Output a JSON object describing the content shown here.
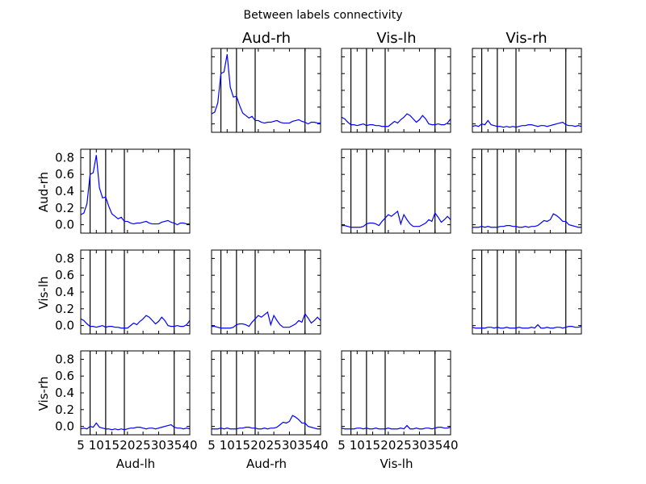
{
  "chart_data": {
    "type": "line",
    "title": "Between labels connectivity",
    "labels": [
      "Aud-lh",
      "Aud-rh",
      "Vis-lh",
      "Vis-rh"
    ],
    "x_range": [
      5,
      40
    ],
    "y_range": [
      -0.1,
      0.9
    ],
    "xticks": [
      5,
      10,
      15,
      20,
      25,
      30,
      35,
      40
    ],
    "yticks": [
      0.0,
      0.2,
      0.4,
      0.6,
      0.8
    ],
    "ytick_labels": [
      "0.0",
      "0.2",
      "0.4",
      "0.6",
      "0.8"
    ],
    "band_lines_hz": [
      8,
      13,
      19,
      35
    ],
    "line_color": "#0000ff",
    "x": [
      5,
      6,
      7,
      8,
      9,
      10,
      11,
      12,
      13,
      14,
      15,
      16,
      17,
      18,
      19,
      20,
      21,
      22,
      23,
      24,
      25,
      26,
      27,
      28,
      29,
      30,
      31,
      32,
      33,
      34,
      35,
      36,
      37,
      38,
      39,
      40
    ],
    "panels": [
      {
        "row": 0,
        "col": 1,
        "values": [
          0.12,
          0.14,
          0.25,
          0.6,
          0.62,
          0.83,
          0.44,
          0.32,
          0.33,
          0.22,
          0.13,
          0.1,
          0.07,
          0.09,
          0.04,
          0.04,
          0.02,
          0.01,
          0.02,
          0.02,
          0.03,
          0.04,
          0.02,
          0.01,
          0.01,
          0.01,
          0.03,
          0.04,
          0.05,
          0.03,
          0.02,
          0.0,
          0.02,
          0.02,
          0.01,
          0.01
        ]
      },
      {
        "row": 0,
        "col": 2,
        "values": [
          0.08,
          0.06,
          0.02,
          -0.01,
          -0.01,
          -0.02,
          -0.01,
          0.0,
          -0.02,
          -0.01,
          -0.01,
          -0.02,
          -0.02,
          -0.03,
          -0.03,
          -0.03,
          0.0,
          0.03,
          0.01,
          0.05,
          0.08,
          0.12,
          0.1,
          0.06,
          0.02,
          0.05,
          0.1,
          0.06,
          0.0,
          -0.01,
          -0.01,
          0.0,
          -0.01,
          -0.01,
          0.01,
          0.06
        ]
      },
      {
        "row": 0,
        "col": 3,
        "values": [
          -0.03,
          -0.02,
          -0.03,
          0.0,
          -0.01,
          0.04,
          -0.01,
          -0.02,
          -0.03,
          -0.03,
          -0.04,
          -0.03,
          -0.04,
          -0.03,
          -0.04,
          -0.03,
          -0.02,
          -0.02,
          -0.01,
          -0.01,
          -0.02,
          -0.03,
          -0.02,
          -0.02,
          -0.03,
          -0.02,
          -0.01,
          0.0,
          0.01,
          0.02,
          -0.01,
          -0.02,
          -0.02,
          -0.03,
          -0.02,
          -0.03
        ]
      },
      {
        "row": 1,
        "col": 0,
        "values": [
          0.12,
          0.14,
          0.25,
          0.6,
          0.62,
          0.83,
          0.44,
          0.32,
          0.33,
          0.22,
          0.13,
          0.1,
          0.07,
          0.09,
          0.04,
          0.04,
          0.02,
          0.01,
          0.02,
          0.02,
          0.03,
          0.04,
          0.02,
          0.01,
          0.01,
          0.01,
          0.03,
          0.04,
          0.05,
          0.03,
          0.02,
          0.0,
          0.02,
          0.02,
          0.01,
          0.01
        ]
      },
      {
        "row": 1,
        "col": 2,
        "values": [
          -0.01,
          -0.01,
          -0.02,
          -0.03,
          -0.03,
          -0.03,
          -0.03,
          -0.02,
          0.01,
          0.02,
          0.02,
          0.01,
          -0.01,
          0.04,
          0.08,
          0.12,
          0.1,
          0.13,
          0.16,
          0.01,
          0.12,
          0.06,
          0.01,
          -0.02,
          -0.02,
          -0.02,
          0.0,
          0.02,
          0.06,
          0.04,
          0.14,
          0.09,
          0.03,
          0.06,
          0.1,
          0.06
        ]
      },
      {
        "row": 1,
        "col": 3,
        "values": [
          -0.03,
          -0.03,
          -0.03,
          -0.02,
          -0.03,
          -0.02,
          -0.03,
          -0.03,
          -0.03,
          -0.02,
          -0.02,
          -0.01,
          -0.01,
          -0.02,
          -0.02,
          -0.03,
          -0.03,
          -0.02,
          -0.03,
          -0.02,
          -0.02,
          -0.01,
          0.02,
          0.05,
          0.04,
          0.06,
          0.13,
          0.11,
          0.08,
          0.04,
          0.04,
          0.0,
          -0.01,
          -0.02,
          -0.03,
          -0.03
        ]
      },
      {
        "row": 2,
        "col": 0,
        "values": [
          0.08,
          0.06,
          0.02,
          -0.01,
          -0.01,
          -0.02,
          -0.01,
          0.0,
          -0.02,
          -0.01,
          -0.01,
          -0.02,
          -0.02,
          -0.03,
          -0.03,
          -0.03,
          0.0,
          0.03,
          0.01,
          0.05,
          0.08,
          0.12,
          0.1,
          0.06,
          0.02,
          0.05,
          0.1,
          0.06,
          0.0,
          -0.01,
          -0.01,
          0.0,
          -0.01,
          -0.01,
          0.01,
          0.06
        ]
      },
      {
        "row": 2,
        "col": 1,
        "values": [
          -0.01,
          -0.01,
          -0.02,
          -0.03,
          -0.03,
          -0.03,
          -0.03,
          -0.02,
          0.01,
          0.02,
          0.02,
          0.01,
          -0.01,
          0.04,
          0.08,
          0.12,
          0.1,
          0.13,
          0.16,
          0.01,
          0.12,
          0.06,
          0.01,
          -0.02,
          -0.02,
          -0.02,
          0.0,
          0.02,
          0.06,
          0.04,
          0.14,
          0.09,
          0.03,
          0.06,
          0.1,
          0.06
        ]
      },
      {
        "row": 2,
        "col": 3,
        "values": [
          -0.02,
          -0.03,
          -0.03,
          -0.03,
          -0.03,
          -0.02,
          -0.02,
          -0.03,
          -0.02,
          -0.03,
          -0.03,
          -0.02,
          -0.03,
          -0.03,
          -0.03,
          -0.02,
          -0.03,
          -0.03,
          -0.03,
          -0.02,
          -0.03,
          0.01,
          -0.03,
          -0.03,
          -0.02,
          -0.03,
          -0.03,
          -0.02,
          -0.02,
          -0.03,
          -0.02,
          -0.01,
          -0.01,
          -0.02,
          -0.02,
          -0.01
        ]
      },
      {
        "row": 3,
        "col": 0,
        "values": [
          -0.03,
          -0.02,
          -0.03,
          0.0,
          -0.01,
          0.04,
          -0.01,
          -0.02,
          -0.03,
          -0.03,
          -0.04,
          -0.03,
          -0.04,
          -0.03,
          -0.04,
          -0.03,
          -0.02,
          -0.02,
          -0.01,
          -0.01,
          -0.02,
          -0.03,
          -0.02,
          -0.02,
          -0.03,
          -0.02,
          -0.01,
          0.0,
          0.01,
          0.02,
          -0.01,
          -0.02,
          -0.02,
          -0.03,
          -0.02,
          -0.03
        ]
      },
      {
        "row": 3,
        "col": 1,
        "values": [
          -0.03,
          -0.03,
          -0.03,
          -0.02,
          -0.03,
          -0.02,
          -0.03,
          -0.03,
          -0.03,
          -0.02,
          -0.02,
          -0.01,
          -0.01,
          -0.02,
          -0.02,
          -0.03,
          -0.03,
          -0.02,
          -0.03,
          -0.02,
          -0.02,
          -0.01,
          0.02,
          0.05,
          0.04,
          0.06,
          0.13,
          0.11,
          0.08,
          0.04,
          0.04,
          0.0,
          -0.01,
          -0.02,
          -0.03,
          -0.03
        ]
      },
      {
        "row": 3,
        "col": 2,
        "values": [
          -0.02,
          -0.03,
          -0.03,
          -0.03,
          -0.03,
          -0.02,
          -0.02,
          -0.03,
          -0.02,
          -0.03,
          -0.03,
          -0.02,
          -0.03,
          -0.03,
          -0.03,
          -0.02,
          -0.03,
          -0.03,
          -0.03,
          -0.02,
          -0.03,
          0.01,
          -0.03,
          -0.03,
          -0.02,
          -0.03,
          -0.03,
          -0.02,
          -0.02,
          -0.03,
          -0.02,
          -0.01,
          -0.01,
          -0.02,
          -0.02,
          -0.01
        ]
      }
    ]
  }
}
